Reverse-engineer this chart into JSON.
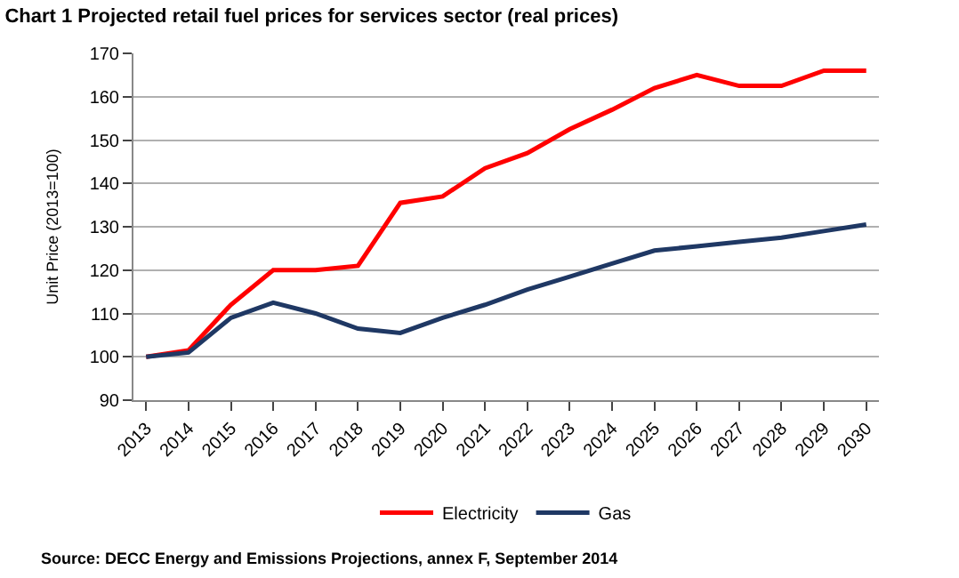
{
  "chart_data": {
    "type": "line",
    "title": "Chart 1 Projected retail fuel prices for services sector (real prices)",
    "ylabel": "Unit Price (2013=100)",
    "categories": [
      "2013",
      "2014",
      "2015",
      "2016",
      "2017",
      "2018",
      "2019",
      "2020",
      "2021",
      "2022",
      "2023",
      "2024",
      "2025",
      "2026",
      "2027",
      "2028",
      "2029",
      "2030"
    ],
    "series": [
      {
        "name": "Electricity",
        "color": "#ff0000",
        "values": [
          100,
          101.5,
          112,
          120,
          120,
          121,
          135.5,
          137,
          143.5,
          147,
          152.5,
          157,
          162,
          165,
          162.5,
          162.5,
          166,
          166
        ]
      },
      {
        "name": "Gas",
        "color": "#1f3864",
        "values": [
          100,
          101,
          109,
          112.5,
          110,
          106.5,
          105.5,
          109,
          112,
          115.5,
          118.5,
          121.5,
          124.5,
          125.5,
          126.5,
          127.5,
          129,
          130.5
        ]
      }
    ],
    "ylim": [
      90,
      170
    ],
    "yticks": [
      90,
      100,
      110,
      120,
      130,
      140,
      150,
      160,
      170
    ],
    "grid": "y",
    "legend": "bottom",
    "marker": "none",
    "line_style": "solid",
    "annotations": [
      "Source: DECC Energy and Emissions Projections, annex F, September 2014"
    ]
  }
}
